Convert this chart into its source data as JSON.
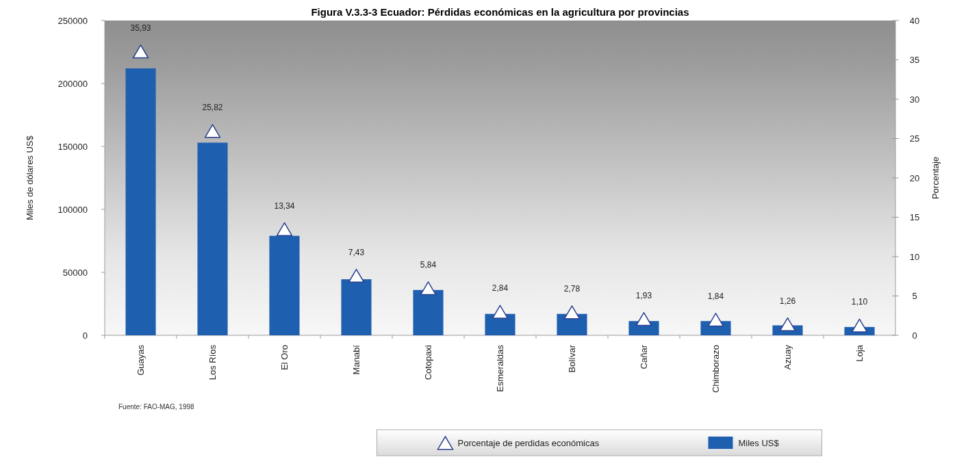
{
  "chart_data": {
    "type": "bar",
    "title": "Figura V.3.3-3 Ecuador: Pérdidas económicas en la agricultura por provincias",
    "categories": [
      "Guayas",
      "Los Ríos",
      "El Oro",
      "Manabí",
      "Cotopaxi",
      "Esmeraldas",
      "Bolívar",
      "Cañar",
      "Chimborazo",
      "Azuay",
      "Loja"
    ],
    "series": [
      {
        "name": "Miles US$",
        "color": "#1f5fb0",
        "values": [
          212000,
          153000,
          79000,
          44500,
          36000,
          17000,
          17000,
          11300,
          11300,
          7900,
          6600
        ]
      },
      {
        "name": "Porcentaje de perdidas económicas",
        "type": "scatter",
        "axis": "y2",
        "color": "#ffffff",
        "marker": "triangle",
        "values": [
          35.93,
          25.82,
          13.34,
          7.43,
          5.84,
          2.84,
          2.78,
          1.93,
          1.84,
          1.26,
          1.1
        ],
        "value_labels": [
          "35,93",
          "25,82",
          "13,34",
          "7,43",
          "5,84",
          "2,84",
          "2,78",
          "1,93",
          "1,84",
          "1,26",
          "1,10"
        ]
      }
    ],
    "ylabel": "Miles de dólares US$",
    "y2label": "Porcentaje",
    "ylim": [
      0,
      250000
    ],
    "yticks": [
      0,
      50000,
      100000,
      150000,
      200000,
      250000
    ],
    "y2lim": [
      0,
      40
    ],
    "y2ticks": [
      0,
      5,
      10,
      15,
      20,
      25,
      30,
      35,
      40
    ],
    "annotations": [
      "Fuente: FAO-MAG, 1998"
    ],
    "legend": "bottom",
    "grid": false
  }
}
